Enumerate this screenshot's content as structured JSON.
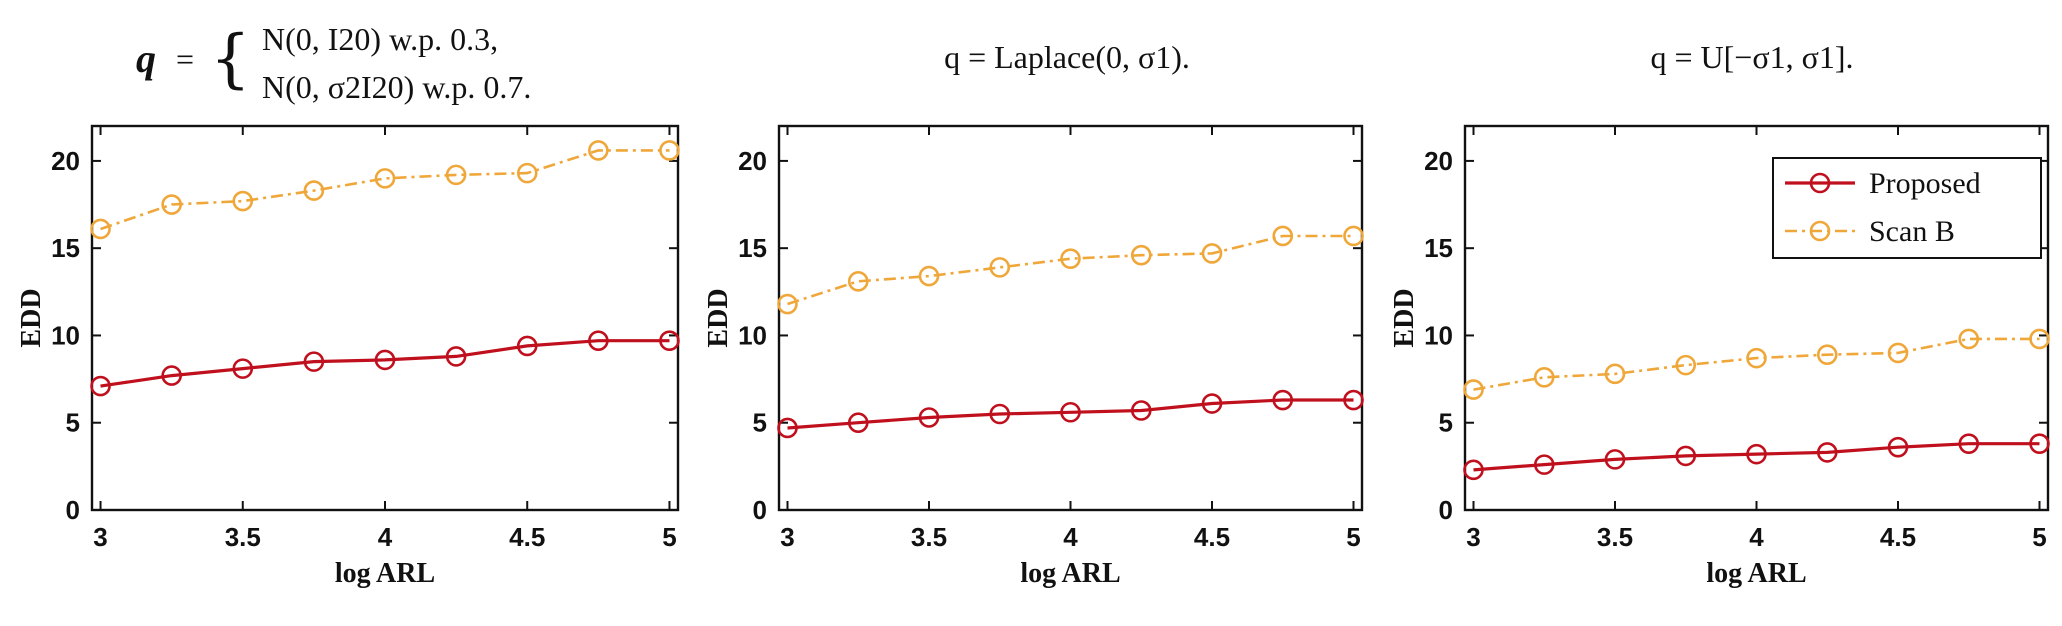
{
  "colors": {
    "proposed": "#c0101e",
    "scan_b": "#f0a73a"
  },
  "titles": {
    "panel1_q": "q",
    "panel1_eq": "=",
    "panel1_line1": "N(0, I20) w.p. 0.3,",
    "panel1_line2": "N(0, σ2I20) w.p. 0.7.",
    "panel2": "q = Laplace(0, σ1).",
    "panel3": "q = U[−σ1, σ1]."
  },
  "chart_data": [
    {
      "type": "line",
      "title": "q = { N(0, I20) w.p. 0.3, N(0, σ²I20) w.p. 0.7.",
      "xlabel": "log ARL",
      "ylabel": "EDD",
      "xlim": [
        2.97,
        5.03
      ],
      "ylim": [
        0,
        22
      ],
      "xticks": [
        "3",
        "3.5",
        "4",
        "4.5",
        "5"
      ],
      "yticks": [
        "0",
        "5",
        "10",
        "15",
        "20"
      ],
      "x": [
        3,
        3.25,
        3.5,
        3.75,
        4,
        4.25,
        4.5,
        4.75,
        5
      ],
      "series": [
        {
          "name": "Proposed",
          "values": [
            7.1,
            7.7,
            8.1,
            8.5,
            8.6,
            8.8,
            9.4,
            9.7,
            9.7
          ]
        },
        {
          "name": "Scan B",
          "values": [
            16.1,
            17.5,
            17.7,
            18.3,
            19.0,
            19.2,
            19.3,
            20.6,
            20.6
          ]
        }
      ]
    },
    {
      "type": "line",
      "title": "q = Laplace(0, σ1).",
      "xlabel": "log ARL",
      "ylabel": "EDD",
      "xlim": [
        2.97,
        5.03
      ],
      "ylim": [
        0,
        22
      ],
      "xticks": [
        "3",
        "3.5",
        "4",
        "4.5",
        "5"
      ],
      "yticks": [
        "0",
        "5",
        "10",
        "15",
        "20"
      ],
      "x": [
        3,
        3.25,
        3.5,
        3.75,
        4,
        4.25,
        4.5,
        4.75,
        5
      ],
      "series": [
        {
          "name": "Proposed",
          "values": [
            4.7,
            5.0,
            5.3,
            5.5,
            5.6,
            5.7,
            6.1,
            6.3,
            6.3
          ]
        },
        {
          "name": "Scan B",
          "values": [
            11.8,
            13.1,
            13.4,
            13.9,
            14.4,
            14.6,
            14.7,
            15.7,
            15.7
          ]
        }
      ]
    },
    {
      "type": "line",
      "title": "q = U[−σ1, σ1].",
      "xlabel": "log ARL",
      "ylabel": "EDD",
      "xlim": [
        2.97,
        5.03
      ],
      "ylim": [
        0,
        22
      ],
      "xticks": [
        "3",
        "3.5",
        "4",
        "4.5",
        "5"
      ],
      "yticks": [
        "0",
        "5",
        "10",
        "15",
        "20"
      ],
      "x": [
        3,
        3.25,
        3.5,
        3.75,
        4,
        4.25,
        4.5,
        4.75,
        5
      ],
      "legend": {
        "position": "top-right",
        "entries": [
          "Proposed",
          "Scan B"
        ]
      },
      "series": [
        {
          "name": "Proposed",
          "values": [
            2.3,
            2.6,
            2.9,
            3.1,
            3.2,
            3.3,
            3.6,
            3.8,
            3.8
          ]
        },
        {
          "name": "Scan B",
          "values": [
            6.9,
            7.6,
            7.8,
            8.3,
            8.7,
            8.9,
            9.0,
            9.8,
            9.8
          ]
        }
      ]
    }
  ]
}
